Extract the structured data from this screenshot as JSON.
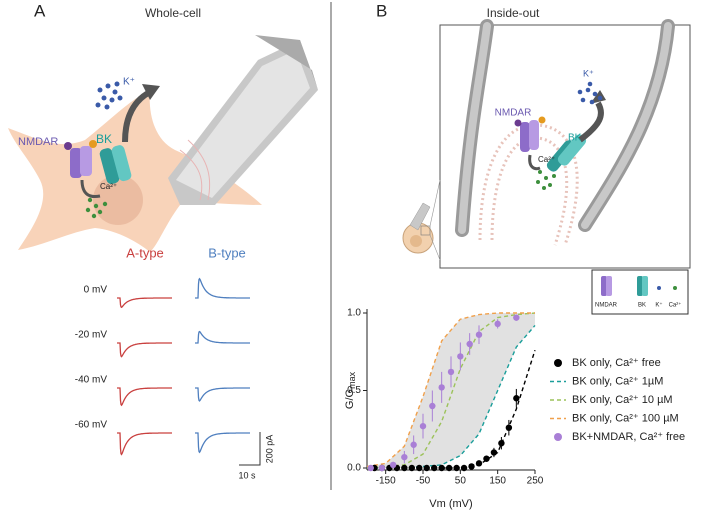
{
  "panel_a": {
    "label": "A",
    "title": "Whole-cell",
    "nmdar": "NMDAR",
    "bk": "BK",
    "potassium": "K⁺",
    "calcium": "Ca²⁺",
    "a_type": "A-type",
    "b_type": "B-type",
    "voltages": [
      "0 mV",
      "-20 mV",
      "-40 mV",
      "-60 mV"
    ],
    "scale_current": "200 pA",
    "scale_time": "10 s"
  },
  "panel_b": {
    "label": "B",
    "title": "Inside-out",
    "nmdar": "NMDAR",
    "bk": "BK",
    "potassium": "K⁺",
    "calcium": "Ca²⁺",
    "legend": [
      "NMDAR",
      "BK",
      "K⁺",
      "Ca²⁺"
    ]
  },
  "chart_data": {
    "type": "line",
    "x_label": "Vm (mV)",
    "y_label": "G/G",
    "y_label_subscript": "max",
    "xlim": [
      -200,
      250
    ],
    "xticks": [
      -150,
      -50,
      50,
      150,
      250
    ],
    "ylim": [
      0,
      1
    ],
    "yticks": [
      {
        "value": 0,
        "label": "0.0"
      },
      {
        "value": 0.5,
        "label": "0.5"
      },
      {
        "value": 1,
        "label": "1.0"
      }
    ],
    "shade_between": [
      3,
      1
    ],
    "series": [
      {
        "name": "BK only, Ca²⁺ free",
        "color": "#000000",
        "style": "points",
        "x": [
          -180,
          -160,
          -140,
          -120,
          -100,
          -80,
          -60,
          -40,
          -20,
          0,
          20,
          40,
          60,
          80,
          100,
          120,
          140,
          160,
          180,
          200
        ],
        "values": [
          0,
          0,
          0,
          0,
          0,
          0,
          0,
          0,
          0,
          0,
          0,
          0,
          0,
          0.01,
          0.03,
          0.06,
          0.1,
          0.16,
          0.26,
          0.45
        ],
        "errors": [
          0,
          0,
          0,
          0,
          0,
          0,
          0,
          0,
          0,
          0,
          0,
          0,
          0,
          0.01,
          0.01,
          0.02,
          0.03,
          0.04,
          0.05,
          0.06
        ]
      },
      {
        "name": "BK only, Ca²⁺ 1µM",
        "color": "#1a9e9a",
        "style": "dashed",
        "x": [
          -200,
          -150,
          -100,
          -50,
          0,
          50,
          100,
          150,
          200,
          250
        ],
        "values": [
          0,
          0,
          0,
          0.01,
          0.02,
          0.08,
          0.22,
          0.5,
          0.78,
          0.92
        ]
      },
      {
        "name": "BK only, Ca²⁺ 10 µM",
        "color": "#9cc25a",
        "style": "dashed",
        "x": [
          -200,
          -150,
          -100,
          -50,
          0,
          50,
          100,
          150,
          200,
          250
        ],
        "values": [
          0,
          0.01,
          0.02,
          0.09,
          0.3,
          0.64,
          0.88,
          0.97,
          0.99,
          1
        ]
      },
      {
        "name": "BK only, Ca²⁺ 100 µM",
        "color": "#f0a04b",
        "style": "dashed",
        "x": [
          -200,
          -150,
          -100,
          -50,
          0,
          50,
          100,
          150,
          200,
          250
        ],
        "values": [
          0.01,
          0.03,
          0.14,
          0.46,
          0.82,
          0.96,
          0.99,
          1,
          1,
          1
        ]
      },
      {
        "name": "BK+NMDAR, Ca²⁺ free",
        "color": "#a97fd6",
        "style": "points",
        "x": [
          -190,
          -160,
          -130,
          -100,
          -75,
          -50,
          -25,
          0,
          25,
          50,
          75,
          100,
          150,
          200
        ],
        "values": [
          0,
          0,
          0.02,
          0.07,
          0.15,
          0.27,
          0.4,
          0.52,
          0.62,
          0.72,
          0.8,
          0.86,
          0.93,
          0.97
        ],
        "errors": [
          0,
          0,
          0.02,
          0.04,
          0.06,
          0.08,
          0.1,
          0.1,
          0.1,
          0.09,
          0.07,
          0.06,
          0.03,
          0.02
        ]
      },
      {
        "color": "#000000",
        "style": "dashed",
        "x": [
          0,
          50,
          100,
          150,
          200,
          250
        ],
        "values": [
          0,
          0,
          0.02,
          0.1,
          0.38,
          0.76
        ]
      }
    ]
  }
}
